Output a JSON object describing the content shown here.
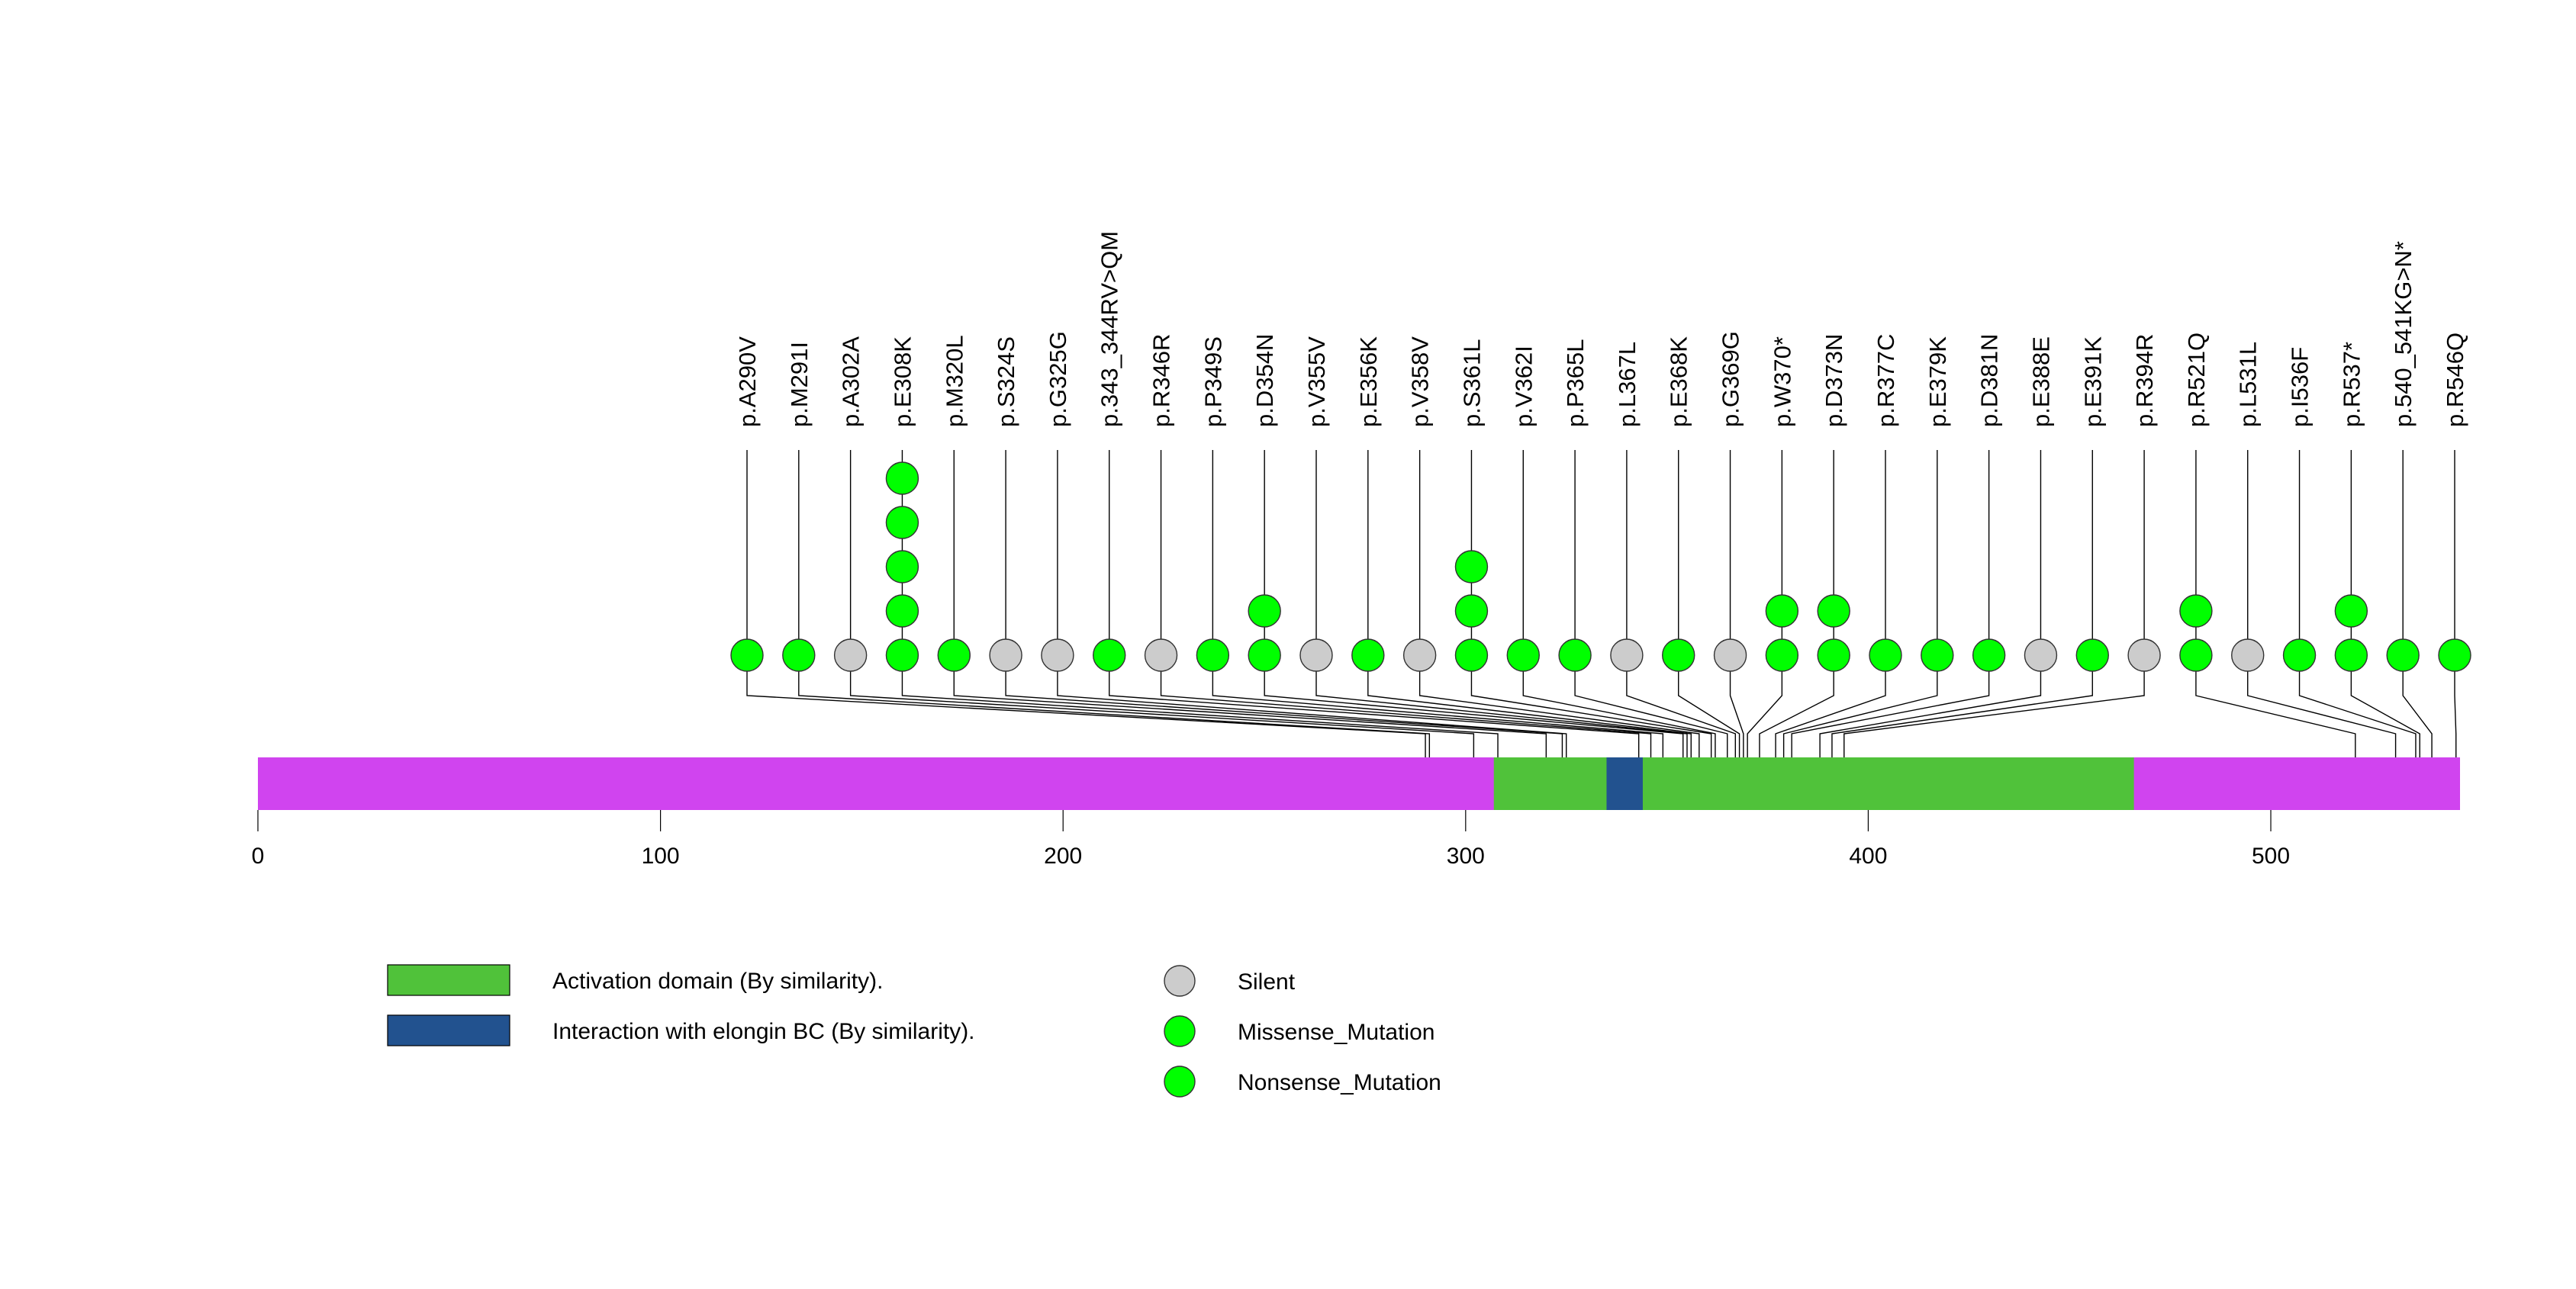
{
  "chart_data": {
    "type": "lollipop",
    "title": "",
    "xlabel": "",
    "ylabel": "",
    "protein_length": 547,
    "xlim": [
      0,
      547
    ],
    "x_ticks": [
      0,
      100,
      200,
      300,
      400,
      500
    ],
    "x_tick_labels": [
      "0",
      "100",
      "200",
      "300",
      "400",
      "500"
    ],
    "backbone_color": "#d044ef",
    "domains": [
      {
        "name": "Activation domain (By similarity).",
        "start": 307,
        "end": 466,
        "color": "#50c23a"
      },
      {
        "name": "Interaction with elongin BC (By similarity).",
        "start": 335,
        "end": 344,
        "color": "#22528f"
      }
    ],
    "mutation_types": [
      {
        "name": "Silent",
        "color": "#cccccc"
      },
      {
        "name": "Missense_Mutation",
        "color": "#00ff00"
      },
      {
        "name": "Nonsense_Mutation",
        "color": "#00ff00"
      }
    ],
    "mutations": [
      {
        "label": "p.A290V",
        "position": 290,
        "type": "Missense_Mutation",
        "count": 1
      },
      {
        "label": "p.M291I",
        "position": 291,
        "type": "Missense_Mutation",
        "count": 1
      },
      {
        "label": "p.A302A",
        "position": 302,
        "type": "Silent",
        "count": 1
      },
      {
        "label": "p.E308K",
        "position": 308,
        "type": "Missense_Mutation",
        "count": 5
      },
      {
        "label": "p.M320L",
        "position": 320,
        "type": "Missense_Mutation",
        "count": 1
      },
      {
        "label": "p.S324S",
        "position": 324,
        "type": "Silent",
        "count": 1
      },
      {
        "label": "p.G325G",
        "position": 325,
        "type": "Silent",
        "count": 1
      },
      {
        "label": "p.343_344RV>QM",
        "position": 343,
        "type": "Missense_Mutation",
        "count": 1
      },
      {
        "label": "p.R346R",
        "position": 346,
        "type": "Silent",
        "count": 1
      },
      {
        "label": "p.P349S",
        "position": 349,
        "type": "Missense_Mutation",
        "count": 1
      },
      {
        "label": "p.D354N",
        "position": 354,
        "type": "Missense_Mutation",
        "count": 2
      },
      {
        "label": "p.V355V",
        "position": 355,
        "type": "Silent",
        "count": 1
      },
      {
        "label": "p.E356K",
        "position": 356,
        "type": "Missense_Mutation",
        "count": 1
      },
      {
        "label": "p.V358V",
        "position": 358,
        "type": "Silent",
        "count": 1
      },
      {
        "label": "p.S361L",
        "position": 361,
        "type": "Missense_Mutation",
        "count": 3
      },
      {
        "label": "p.V362I",
        "position": 362,
        "type": "Missense_Mutation",
        "count": 1
      },
      {
        "label": "p.P365L",
        "position": 365,
        "type": "Missense_Mutation",
        "count": 1
      },
      {
        "label": "p.L367L",
        "position": 367,
        "type": "Silent",
        "count": 1
      },
      {
        "label": "p.E368K",
        "position": 368,
        "type": "Missense_Mutation",
        "count": 1
      },
      {
        "label": "p.G369G",
        "position": 369,
        "type": "Silent",
        "count": 1
      },
      {
        "label": "p.W370*",
        "position": 370,
        "type": "Nonsense_Mutation",
        "count": 2
      },
      {
        "label": "p.D373N",
        "position": 373,
        "type": "Missense_Mutation",
        "count": 2
      },
      {
        "label": "p.R377C",
        "position": 377,
        "type": "Missense_Mutation",
        "count": 1
      },
      {
        "label": "p.E379K",
        "position": 379,
        "type": "Missense_Mutation",
        "count": 1
      },
      {
        "label": "p.D381N",
        "position": 381,
        "type": "Missense_Mutation",
        "count": 1
      },
      {
        "label": "p.E388E",
        "position": 388,
        "type": "Silent",
        "count": 1
      },
      {
        "label": "p.E391K",
        "position": 391,
        "type": "Missense_Mutation",
        "count": 1
      },
      {
        "label": "p.R394R",
        "position": 394,
        "type": "Silent",
        "count": 1
      },
      {
        "label": "p.R521Q",
        "position": 521,
        "type": "Missense_Mutation",
        "count": 2
      },
      {
        "label": "p.L531L",
        "position": 531,
        "type": "Silent",
        "count": 1
      },
      {
        "label": "p.I536F",
        "position": 536,
        "type": "Missense_Mutation",
        "count": 1
      },
      {
        "label": "p.R537*",
        "position": 537,
        "type": "Nonsense_Mutation",
        "count": 2
      },
      {
        "label": "p.540_541KG>N*",
        "position": 540,
        "type": "Nonsense_Mutation",
        "count": 1
      },
      {
        "label": "p.R546Q",
        "position": 546,
        "type": "Missense_Mutation",
        "count": 1
      }
    ],
    "legend": {
      "domains": [
        "Activation domain (By similarity).",
        "Interaction with elongin BC (By similarity)."
      ],
      "mutations": [
        "Silent",
        "Missense_Mutation",
        "Nonsense_Mutation"
      ],
      "placement": "bottom-left"
    }
  }
}
